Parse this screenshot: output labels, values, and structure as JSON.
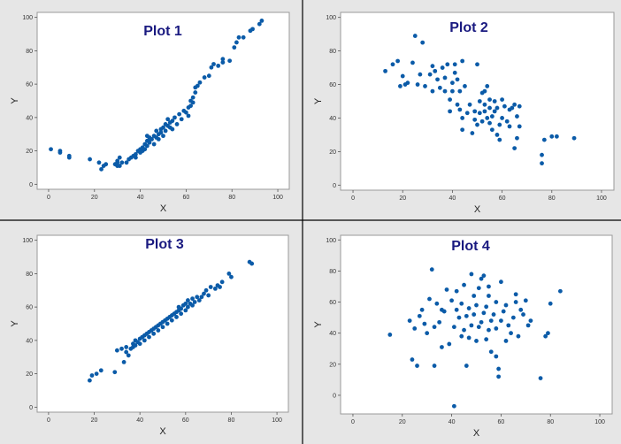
{
  "colors": {
    "panel_bg": "#e6e6e6",
    "plot_bg": "#ffffff",
    "frame": "#9a9a9a",
    "divider": "#000000",
    "marker": "#0b5ba8",
    "title": "#1a1a80"
  },
  "chart_data": [
    {
      "type": "scatter",
      "title": "Plot 1",
      "xlabel": "X",
      "ylabel": "Y",
      "xlim": [
        -5,
        105
      ],
      "ylim": [
        -3,
        103
      ],
      "xticks": [
        0,
        20,
        40,
        60,
        80,
        100
      ],
      "yticks": [
        0,
        20,
        40,
        60,
        80,
        100
      ],
      "grid": false,
      "points": [
        [
          1,
          21
        ],
        [
          5,
          20
        ],
        [
          5,
          19
        ],
        [
          9,
          17
        ],
        [
          9,
          16
        ],
        [
          18,
          15
        ],
        [
          22,
          13
        ],
        [
          23,
          9
        ],
        [
          24,
          11
        ],
        [
          25,
          12
        ],
        [
          29,
          12
        ],
        [
          30,
          11
        ],
        [
          30,
          14
        ],
        [
          30,
          13
        ],
        [
          31,
          11
        ],
        [
          31,
          16
        ],
        [
          32,
          13
        ],
        [
          34,
          13
        ],
        [
          35,
          15
        ],
        [
          36,
          16
        ],
        [
          37,
          17
        ],
        [
          38,
          16
        ],
        [
          38,
          18
        ],
        [
          39,
          20
        ],
        [
          40,
          19
        ],
        [
          40,
          21
        ],
        [
          41,
          20
        ],
        [
          41,
          22
        ],
        [
          42,
          24
        ],
        [
          42,
          21
        ],
        [
          43,
          23
        ],
        [
          43,
          26
        ],
        [
          43,
          29
        ],
        [
          44,
          27
        ],
        [
          44,
          25
        ],
        [
          44,
          28
        ],
        [
          45,
          27
        ],
        [
          46,
          24
        ],
        [
          46,
          29
        ],
        [
          47,
          28
        ],
        [
          47,
          32
        ],
        [
          48,
          30
        ],
        [
          48,
          27
        ],
        [
          49,
          33
        ],
        [
          49,
          31
        ],
        [
          50,
          34
        ],
        [
          50,
          29
        ],
        [
          51,
          32
        ],
        [
          51,
          36
        ],
        [
          52,
          35
        ],
        [
          52,
          39
        ],
        [
          53,
          34
        ],
        [
          53,
          37
        ],
        [
          54,
          33
        ],
        [
          54,
          38
        ],
        [
          55,
          40
        ],
        [
          56,
          36
        ],
        [
          57,
          42
        ],
        [
          58,
          39
        ],
        [
          59,
          44
        ],
        [
          60,
          43
        ],
        [
          61,
          41
        ],
        [
          61,
          46
        ],
        [
          62,
          47
        ],
        [
          62,
          50
        ],
        [
          63,
          52
        ],
        [
          63,
          49
        ],
        [
          64,
          55
        ],
        [
          64,
          58
        ],
        [
          65,
          59
        ],
        [
          66,
          61
        ],
        [
          68,
          64
        ],
        [
          70,
          65
        ],
        [
          71,
          70
        ],
        [
          72,
          72
        ],
        [
          74,
          71
        ],
        [
          76,
          73
        ],
        [
          76,
          75
        ],
        [
          79,
          74
        ],
        [
          81,
          82
        ],
        [
          82,
          85
        ],
        [
          83,
          88
        ],
        [
          85,
          88
        ],
        [
          88,
          92
        ],
        [
          89,
          93
        ],
        [
          92,
          96
        ],
        [
          93,
          98
        ]
      ]
    },
    {
      "type": "scatter",
      "title": "Plot 2",
      "xlabel": "X",
      "ylabel": "Y",
      "xlim": [
        -5,
        105
      ],
      "ylim": [
        -3,
        103
      ],
      "xticks": [
        0,
        20,
        40,
        60,
        80,
        100
      ],
      "yticks": [
        0,
        20,
        40,
        60,
        80,
        100
      ],
      "grid": false,
      "points": [
        [
          13,
          68
        ],
        [
          16,
          72
        ],
        [
          18,
          74
        ],
        [
          19,
          59
        ],
        [
          20,
          65
        ],
        [
          21,
          60
        ],
        [
          22,
          61
        ],
        [
          24,
          73
        ],
        [
          25,
          89
        ],
        [
          26,
          60
        ],
        [
          27,
          66
        ],
        [
          28,
          85
        ],
        [
          29,
          59
        ],
        [
          31,
          66
        ],
        [
          32,
          71
        ],
        [
          32,
          56
        ],
        [
          33,
          68
        ],
        [
          34,
          63
        ],
        [
          35,
          58
        ],
        [
          36,
          70
        ],
        [
          37,
          64
        ],
        [
          37,
          56
        ],
        [
          38,
          72
        ],
        [
          39,
          44
        ],
        [
          39,
          51
        ],
        [
          40,
          56
        ],
        [
          40,
          61
        ],
        [
          41,
          67
        ],
        [
          41,
          72
        ],
        [
          42,
          48
        ],
        [
          42,
          63
        ],
        [
          43,
          45
        ],
        [
          43,
          56
        ],
        [
          44,
          33
        ],
        [
          44,
          40
        ],
        [
          44,
          74
        ],
        [
          45,
          59
        ],
        [
          46,
          43
        ],
        [
          47,
          48
        ],
        [
          48,
          31
        ],
        [
          49,
          44
        ],
        [
          49,
          39
        ],
        [
          50,
          36
        ],
        [
          50,
          72
        ],
        [
          51,
          50
        ],
        [
          51,
          43
        ],
        [
          52,
          38
        ],
        [
          52,
          55
        ],
        [
          53,
          44
        ],
        [
          53,
          48
        ],
        [
          53,
          56
        ],
        [
          54,
          40
        ],
        [
          54,
          59
        ],
        [
          55,
          37
        ],
        [
          55,
          46
        ],
        [
          55,
          51
        ],
        [
          56,
          33
        ],
        [
          56,
          41
        ],
        [
          57,
          44
        ],
        [
          57,
          50
        ],
        [
          58,
          30
        ],
        [
          58,
          46
        ],
        [
          59,
          27
        ],
        [
          59,
          36
        ],
        [
          60,
          40
        ],
        [
          60,
          51
        ],
        [
          61,
          47
        ],
        [
          62,
          38
        ],
        [
          63,
          35
        ],
        [
          63,
          45
        ],
        [
          64,
          46
        ],
        [
          65,
          22
        ],
        [
          65,
          48
        ],
        [
          66,
          28
        ],
        [
          66,
          41
        ],
        [
          67,
          35
        ],
        [
          67,
          47
        ],
        [
          76,
          13
        ],
        [
          76,
          18
        ],
        [
          77,
          27
        ],
        [
          80,
          29
        ],
        [
          82,
          29
        ],
        [
          89,
          28
        ]
      ]
    },
    {
      "type": "scatter",
      "title": "Plot 3",
      "xlabel": "X",
      "ylabel": "Y",
      "xlim": [
        -5,
        105
      ],
      "ylim": [
        -3,
        103
      ],
      "xticks": [
        0,
        20,
        40,
        60,
        80,
        100
      ],
      "yticks": [
        0,
        20,
        40,
        60,
        80,
        100
      ],
      "grid": false,
      "points": [
        [
          18,
          16
        ],
        [
          19,
          19
        ],
        [
          21,
          20
        ],
        [
          23,
          22
        ],
        [
          29,
          21
        ],
        [
          30,
          34
        ],
        [
          32,
          35
        ],
        [
          33,
          27
        ],
        [
          34,
          36
        ],
        [
          34,
          33
        ],
        [
          35,
          31
        ],
        [
          36,
          35
        ],
        [
          37,
          36
        ],
        [
          37,
          38
        ],
        [
          38,
          37
        ],
        [
          38,
          40
        ],
        [
          39,
          39
        ],
        [
          40,
          38
        ],
        [
          40,
          41
        ],
        [
          41,
          42
        ],
        [
          42,
          40
        ],
        [
          42,
          43
        ],
        [
          43,
          44
        ],
        [
          44,
          42
        ],
        [
          44,
          45
        ],
        [
          45,
          46
        ],
        [
          46,
          44
        ],
        [
          46,
          47
        ],
        [
          47,
          48
        ],
        [
          48,
          46
        ],
        [
          48,
          49
        ],
        [
          49,
          50
        ],
        [
          50,
          48
        ],
        [
          50,
          51
        ],
        [
          51,
          52
        ],
        [
          52,
          50
        ],
        [
          52,
          53
        ],
        [
          53,
          54
        ],
        [
          54,
          52
        ],
        [
          54,
          55
        ],
        [
          55,
          56
        ],
        [
          56,
          54
        ],
        [
          56,
          57
        ],
        [
          57,
          58
        ],
        [
          57,
          60
        ],
        [
          58,
          56
        ],
        [
          58,
          59
        ],
        [
          59,
          61
        ],
        [
          60,
          58
        ],
        [
          60,
          62
        ],
        [
          61,
          60
        ],
        [
          61,
          64
        ],
        [
          62,
          62
        ],
        [
          63,
          61
        ],
        [
          63,
          65
        ],
        [
          64,
          63
        ],
        [
          65,
          66
        ],
        [
          66,
          64
        ],
        [
          67,
          66
        ],
        [
          68,
          68
        ],
        [
          69,
          70
        ],
        [
          70,
          67
        ],
        [
          71,
          72
        ],
        [
          73,
          71
        ],
        [
          74,
          73
        ],
        [
          75,
          72
        ],
        [
          76,
          75
        ],
        [
          79,
          80
        ],
        [
          80,
          78
        ],
        [
          88,
          87
        ],
        [
          89,
          86
        ]
      ]
    },
    {
      "type": "scatter",
      "title": "Plot 4",
      "xlabel": "X",
      "ylabel": "Y",
      "xlim": [
        -5,
        105
      ],
      "ylim": [
        -12,
        103
      ],
      "xticks": [
        0,
        20,
        40,
        60,
        80,
        100
      ],
      "yticks": [
        0,
        20,
        40,
        60,
        80,
        100
      ],
      "grid": false,
      "points": [
        [
          15,
          39
        ],
        [
          23,
          48
        ],
        [
          24,
          23
        ],
        [
          25,
          43
        ],
        [
          26,
          19
        ],
        [
          27,
          51
        ],
        [
          28,
          55
        ],
        [
          29,
          46
        ],
        [
          30,
          40
        ],
        [
          31,
          62
        ],
        [
          32,
          81
        ],
        [
          33,
          19
        ],
        [
          33,
          44
        ],
        [
          34,
          59
        ],
        [
          35,
          47
        ],
        [
          36,
          31
        ],
        [
          36,
          55
        ],
        [
          37,
          54
        ],
        [
          38,
          68
        ],
        [
          39,
          33
        ],
        [
          40,
          61
        ],
        [
          41,
          -7
        ],
        [
          41,
          44
        ],
        [
          42,
          55
        ],
        [
          42,
          67
        ],
        [
          43,
          50
        ],
        [
          44,
          38
        ],
        [
          44,
          59
        ],
        [
          45,
          42
        ],
        [
          45,
          71
        ],
        [
          46,
          51
        ],
        [
          46,
          19
        ],
        [
          47,
          37
        ],
        [
          47,
          56
        ],
        [
          48,
          45
        ],
        [
          48,
          78
        ],
        [
          49,
          52
        ],
        [
          49,
          64
        ],
        [
          50,
          35
        ],
        [
          50,
          58
        ],
        [
          51,
          44
        ],
        [
          51,
          69
        ],
        [
          52,
          75
        ],
        [
          52,
          47
        ],
        [
          53,
          53
        ],
        [
          53,
          77
        ],
        [
          54,
          36
        ],
        [
          54,
          57
        ],
        [
          55,
          42
        ],
        [
          55,
          64
        ],
        [
          55,
          70
        ],
        [
          56,
          48
        ],
        [
          56,
          28
        ],
        [
          57,
          52
        ],
        [
          58,
          43
        ],
        [
          58,
          60
        ],
        [
          58,
          25
        ],
        [
          59,
          17
        ],
        [
          59,
          12
        ],
        [
          60,
          73
        ],
        [
          60,
          48
        ],
        [
          61,
          54
        ],
        [
          62,
          35
        ],
        [
          62,
          58
        ],
        [
          63,
          45
        ],
        [
          64,
          40
        ],
        [
          65,
          50
        ],
        [
          66,
          60
        ],
        [
          66,
          65
        ],
        [
          67,
          38
        ],
        [
          68,
          55
        ],
        [
          69,
          52
        ],
        [
          70,
          61
        ],
        [
          71,
          45
        ],
        [
          72,
          48
        ],
        [
          76,
          11
        ],
        [
          78,
          38
        ],
        [
          79,
          40
        ],
        [
          80,
          59
        ],
        [
          84,
          67
        ]
      ]
    }
  ]
}
